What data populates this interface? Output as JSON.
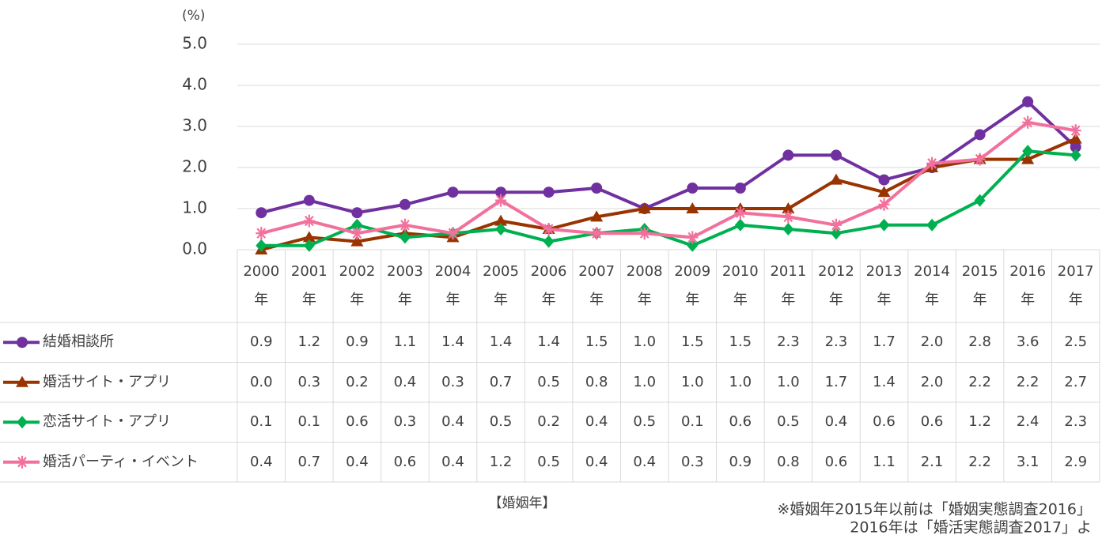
{
  "chart_data": {
    "type": "line",
    "y_unit_label": "(%)",
    "x_label": "【婚姻年】",
    "notes": [
      "※婚姻年2015年以前は「婚姻実態調査2016」",
      "2016年は「婚活実態調査2017」よ"
    ],
    "categories": [
      "2000年",
      "2001年",
      "2002年",
      "2003年",
      "2004年",
      "2005年",
      "2006年",
      "2007年",
      "2008年",
      "2009年",
      "2010年",
      "2011年",
      "2012年",
      "2013年",
      "2014年",
      "2015年",
      "2016年",
      "2017年"
    ],
    "series": [
      {
        "name": "結婚相談所",
        "color": "#7030a0",
        "marker": "circle",
        "values": [
          0.9,
          1.2,
          0.9,
          1.1,
          1.4,
          1.4,
          1.4,
          1.5,
          1.0,
          1.5,
          1.5,
          2.3,
          2.3,
          1.7,
          2.0,
          2.8,
          3.6,
          2.5
        ],
        "value_labels": [
          "0.9",
          "1.2",
          "0.9",
          "1.1",
          "1.4",
          "1.4",
          "1.4",
          "1.5",
          "1.0",
          "1.5",
          "1.5",
          "2.3",
          "2.3",
          "1.7",
          "2.0",
          "2.8",
          "3.6",
          "2.5"
        ]
      },
      {
        "name": "婚活サイト・アプリ",
        "color": "#993300",
        "marker": "triangle",
        "values": [
          0.0,
          0.3,
          0.2,
          0.4,
          0.3,
          0.7,
          0.5,
          0.8,
          1.0,
          1.0,
          1.0,
          1.0,
          1.7,
          1.4,
          2.0,
          2.2,
          2.2,
          2.7
        ],
        "value_labels": [
          "0.0",
          "0.3",
          "0.2",
          "0.4",
          "0.3",
          "0.7",
          "0.5",
          "0.8",
          "1.0",
          "1.0",
          "1.0",
          "1.0",
          "1.7",
          "1.4",
          "2.0",
          "2.2",
          "2.2",
          "2.7"
        ]
      },
      {
        "name": "恋活サイト・アプリ",
        "color": "#00b050",
        "marker": "diamond",
        "values": [
          0.1,
          0.1,
          0.6,
          0.3,
          0.4,
          0.5,
          0.2,
          0.4,
          0.5,
          0.1,
          0.6,
          0.5,
          0.4,
          0.6,
          0.6,
          1.2,
          2.4,
          2.3
        ],
        "value_labels": [
          "0.1",
          "0.1",
          "0.6",
          "0.3",
          "0.4",
          "0.5",
          "0.2",
          "0.4",
          "0.5",
          "0.1",
          "0.6",
          "0.5",
          "0.4",
          "0.6",
          "0.6",
          "1.2",
          "2.4",
          "2.3"
        ]
      },
      {
        "name": "婚活パーティ・イベント",
        "color": "#f2709c",
        "marker": "star",
        "values": [
          0.4,
          0.7,
          0.4,
          0.6,
          0.4,
          1.2,
          0.5,
          0.4,
          0.4,
          0.3,
          0.9,
          0.8,
          0.6,
          1.1,
          2.1,
          2.2,
          3.1,
          2.9
        ],
        "value_labels": [
          "0.4",
          "0.7",
          "0.4",
          "0.6",
          "0.4",
          "1.2",
          "0.5",
          "0.4",
          "0.4",
          "0.3",
          "0.9",
          "0.8",
          "0.6",
          "1.1",
          "2.1",
          "2.2",
          "3.1",
          "2.9"
        ]
      }
    ],
    "ylim": [
      0,
      5
    ],
    "yticks": [
      {
        "value": 0,
        "label": "0.0"
      },
      {
        "value": 1,
        "label": "1.0"
      },
      {
        "value": 2,
        "label": "2.0"
      },
      {
        "value": 3,
        "label": "3.0"
      },
      {
        "value": 4,
        "label": "4.0"
      },
      {
        "value": 5,
        "label": "5.0"
      }
    ],
    "grid": true
  }
}
